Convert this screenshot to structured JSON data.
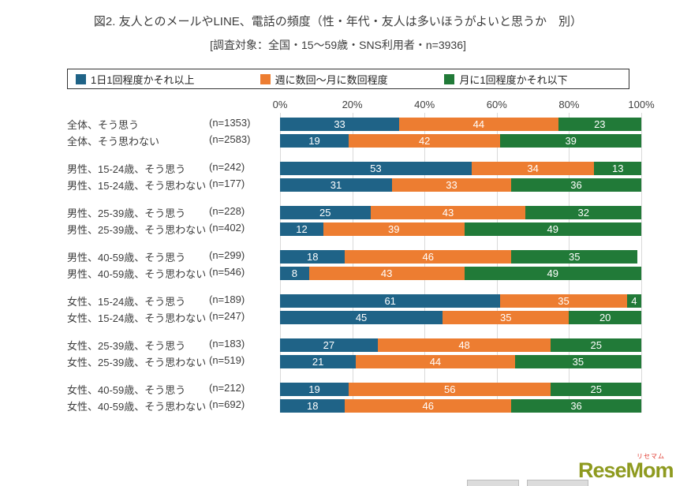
{
  "chart_data": {
    "type": "bar",
    "stacked": true,
    "orientation": "horizontal",
    "title": "図2. 友人とのメールやLINE、電話の頻度（性・年代・友人は多いほうがよいと思うか　別）",
    "subtitle": "[調査対象：全国・15〜59歳・SNS利用者・n=3936]",
    "xlim": [
      0,
      100
    ],
    "x_ticks": [
      "0%",
      "20%",
      "40%",
      "60%",
      "80%",
      "100%"
    ],
    "legend_position": "top",
    "grid": true,
    "series_names": [
      "1日1回程度かそれ以上",
      "週に数回〜月に数回程度",
      "月に1回程度かそれ以下"
    ],
    "colors": [
      "#1f6387",
      "#ed7d31",
      "#217a38"
    ],
    "groups": [
      {
        "extra_gap": false,
        "rows": [
          {
            "label": "全体、そう思う",
            "n": "(n=1353)",
            "values": [
              33,
              44,
              23
            ]
          },
          {
            "label": "全体、そう思わない",
            "n": "(n=2583)",
            "values": [
              19,
              42,
              39
            ]
          }
        ]
      },
      {
        "extra_gap": true,
        "rows": [
          {
            "label": "男性、15-24歳、そう思う",
            "n": "(n=242)",
            "values": [
              53,
              34,
              13
            ]
          },
          {
            "label": "男性、15-24歳、そう思わない",
            "n": "(n=177)",
            "values": [
              31,
              33,
              36
            ]
          }
        ]
      },
      {
        "extra_gap": false,
        "rows": [
          {
            "label": "男性、25-39歳、そう思う",
            "n": "(n=228)",
            "values": [
              25,
              43,
              32
            ]
          },
          {
            "label": "男性、25-39歳、そう思わない",
            "n": "(n=402)",
            "values": [
              12,
              39,
              49
            ]
          }
        ]
      },
      {
        "extra_gap": false,
        "rows": [
          {
            "label": "男性、40-59歳、そう思う",
            "n": "(n=299)",
            "values": [
              18,
              46,
              35
            ]
          },
          {
            "label": "男性、40-59歳、そう思わない",
            "n": "(n=546)",
            "values": [
              8,
              43,
              49
            ]
          }
        ]
      },
      {
        "extra_gap": true,
        "rows": [
          {
            "label": "女性、15-24歳、そう思う",
            "n": "(n=189)",
            "values": [
              61,
              35,
              4
            ]
          },
          {
            "label": "女性、15-24歳、そう思わない",
            "n": "(n=247)",
            "values": [
              45,
              35,
              20
            ]
          }
        ]
      },
      {
        "extra_gap": false,
        "rows": [
          {
            "label": "女性、25-39歳、そう思う",
            "n": "(n=183)",
            "values": [
              27,
              48,
              25
            ]
          },
          {
            "label": "女性、25-39歳、そう思わない",
            "n": "(n=519)",
            "values": [
              21,
              44,
              35
            ]
          }
        ]
      },
      {
        "extra_gap": false,
        "rows": [
          {
            "label": "女性、40-59歳、そう思う",
            "n": "(n=212)",
            "values": [
              19,
              56,
              25
            ]
          },
          {
            "label": "女性、40-59歳、そう思わない",
            "n": "(n=692)",
            "values": [
              18,
              46,
              36
            ]
          }
        ]
      }
    ]
  },
  "logo": {
    "kana": "リセマム",
    "text": "ReseMom",
    "color": "#8e9a1f",
    "kana_color": "#e0392e"
  }
}
